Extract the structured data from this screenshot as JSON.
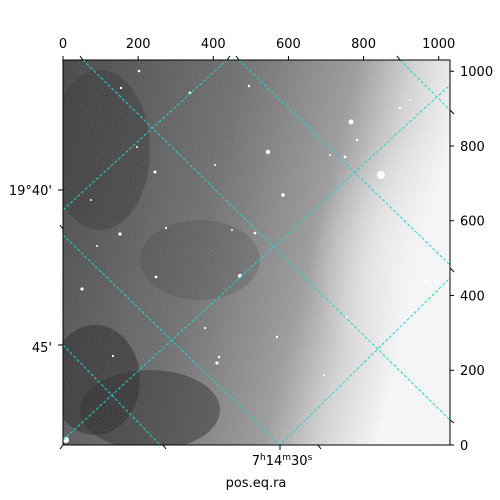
{
  "figure": {
    "pixel_axis_top": {
      "range": [
        0,
        1030
      ],
      "ticks": [
        "0",
        "200",
        "400",
        "600",
        "800",
        "1000"
      ],
      "values": [
        0,
        200,
        400,
        600,
        800,
        1000
      ]
    },
    "pixel_axis_right": {
      "range": [
        0,
        1030
      ],
      "ticks": [
        "0",
        "200",
        "400",
        "600",
        "800",
        "1000"
      ],
      "values": [
        0,
        200,
        400,
        600,
        800,
        1000
      ]
    },
    "world_axis_left": {
      "ticks": [
        "19°40'",
        "45'"
      ]
    },
    "world_axis_bottom": {
      "tick_main": "7",
      "tick_h": "h",
      "tick_min": "14",
      "tick_m": "m",
      "tick_sec": "30",
      "tick_s": "s",
      "label": "pos.eq.ra"
    },
    "colors": {
      "grid": "#22d3d3",
      "frame": "#000000",
      "sky_dark": "#3a3a3a",
      "sky_light": "#ffffff"
    }
  }
}
